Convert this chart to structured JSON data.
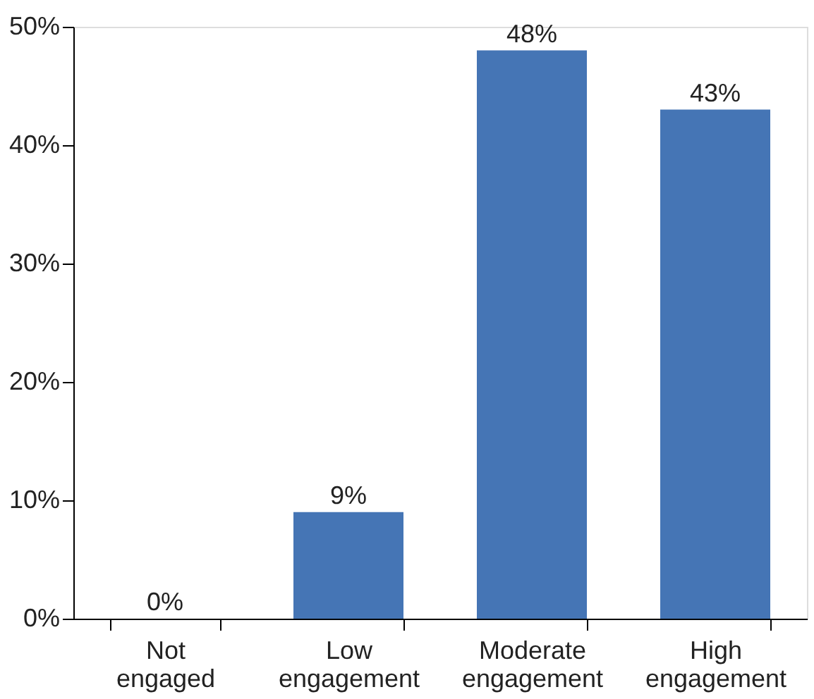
{
  "chart_data": {
    "type": "bar",
    "categories": [
      "Not engaged",
      "Low engagement",
      "Moderate engagement",
      "High engagement"
    ],
    "values": [
      0,
      9,
      48,
      43
    ],
    "color": "#4575b5",
    "value_labels": [
      "0%",
      "9%",
      "48%",
      "43%"
    ],
    "ylim": [
      0,
      50
    ],
    "yticks": [
      {
        "value": 0,
        "label": "0%"
      },
      {
        "value": 10,
        "label": "10%"
      },
      {
        "value": 20,
        "label": "20%"
      },
      {
        "value": 30,
        "label": "30%"
      },
      {
        "value": 40,
        "label": "40%"
      },
      {
        "value": 50,
        "label": "50%"
      }
    ],
    "grid": false
  }
}
